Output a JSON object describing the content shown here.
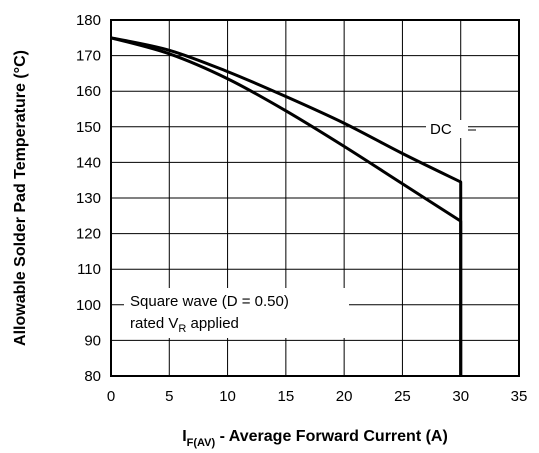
{
  "chart_data": {
    "type": "line",
    "title": "",
    "xlabel": {
      "main": "I",
      "sub": "F(AV)",
      "rest": " - Average Forward Current (A)"
    },
    "ylabel": "Allowable Solder Pad Temperature (°C)",
    "xlim": [
      0,
      35
    ],
    "ylim": [
      80,
      180
    ],
    "xticks": [
      "0",
      "5",
      "10",
      "15",
      "20",
      "25",
      "30",
      "35"
    ],
    "yticks": [
      "80",
      "90",
      "100",
      "110",
      "120",
      "130",
      "140",
      "150",
      "160",
      "170",
      "180"
    ],
    "grid": true,
    "series": [
      {
        "name": "DC",
        "x": [
          0,
          5,
          10,
          15,
          20,
          25,
          30,
          30
        ],
        "y": [
          175,
          171.5,
          165.5,
          158.5,
          151,
          142.5,
          134.5,
          80
        ]
      },
      {
        "name": "Square wave (D = 0.50) rated VR applied",
        "x": [
          0,
          5,
          10,
          15,
          20,
          25,
          30,
          30
        ],
        "y": [
          175,
          170.5,
          163.5,
          154.5,
          144.5,
          134,
          123.5,
          80
        ]
      }
    ],
    "annotations": {
      "dc": "DC",
      "square_line1": "Square wave (D = 0.50)",
      "square_line2_main": "rated V",
      "square_line2_sub": "R",
      "square_line2_rest": " applied"
    }
  }
}
